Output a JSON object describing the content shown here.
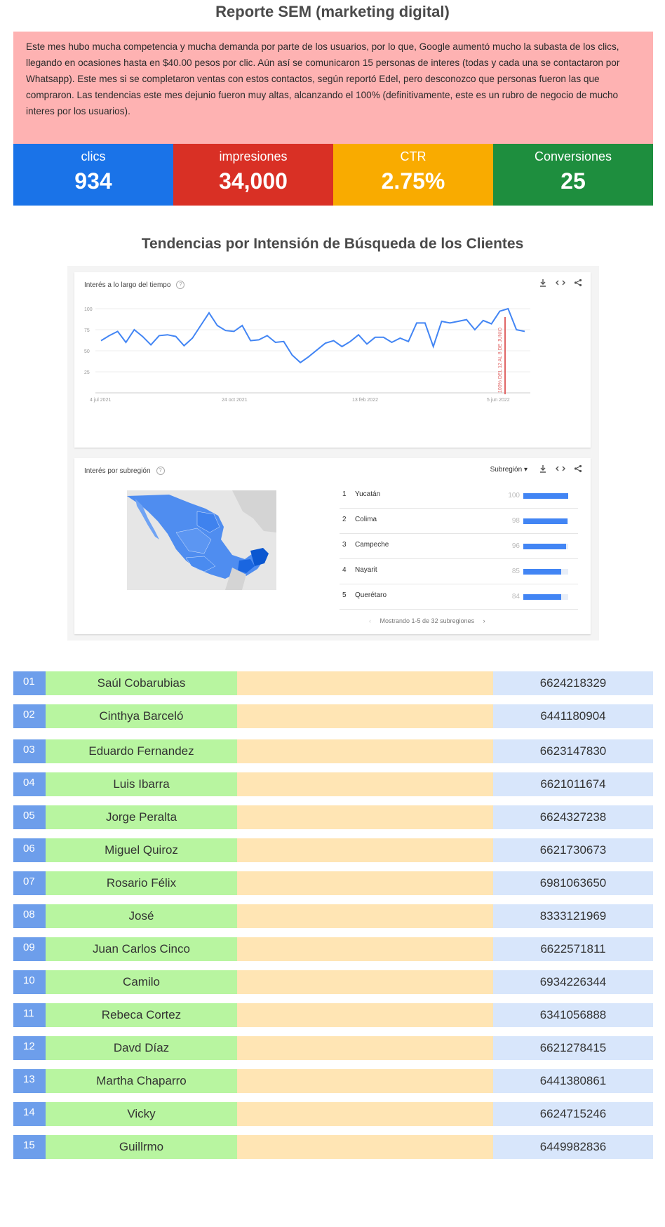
{
  "title": "Reporte SEM (marketing digital)",
  "summary": "Este mes hubo mucha competencia y mucha demanda por parte de los usuarios, por lo que, Google aumentó mucho la subasta de los clics, llegando en ocasiones hasta en $40.00 pesos por clic. Aún así se comunicaron 15 personas de interes (todas y cada una se contactaron por Whatsapp). Este mes si se completaron ventas con estos contactos, según reportó Edel, pero desconozco que personas fueron las que compraron. Las tendencias este mes dejunio fueron muy altas, alcanzando el 100% (definitivamente, este es un rubro de negocio de mucho interes por los usuarios).",
  "metrics": [
    {
      "label": "clics",
      "value": "934",
      "color": "#1a73e8"
    },
    {
      "label": "impresiones",
      "value": "34,000",
      "color": "#d93025"
    },
    {
      "label": "CTR",
      "value": "2.75%",
      "color": "#f9ab00"
    },
    {
      "label": "Conversiones",
      "value": "25",
      "color": "#1e8e3e"
    }
  ],
  "trends_title": "Tendencias por Intensión de Búsqueda de los Clientes",
  "interest_card": {
    "title": "Interés a lo largo del tiempo",
    "annotation": "100% DEL 12 AL 8 DE JUNIO"
  },
  "region_card": {
    "title": "Interés por subregión",
    "selector": "Subregión",
    "pager": "Mostrando 1-5 de 32 subregiones",
    "regions": [
      {
        "rank": "1",
        "name": "Yucatán",
        "value": 100
      },
      {
        "rank": "2",
        "name": "Colima",
        "value": 98
      },
      {
        "rank": "3",
        "name": "Campeche",
        "value": 96
      },
      {
        "rank": "4",
        "name": "Nayarit",
        "value": 85
      },
      {
        "rank": "5",
        "name": "Querétaro",
        "value": 84
      }
    ]
  },
  "chart_data": {
    "type": "line",
    "title": "Interés a lo largo del tiempo",
    "x_ticks": [
      "4 jul 2021",
      "24 oct 2021",
      "13 feb 2022",
      "5 jun 2022"
    ],
    "y_ticks": [
      25,
      50,
      75,
      100
    ],
    "ylim": [
      0,
      110
    ],
    "grid": true,
    "series": [
      {
        "color": "#4285f4",
        "values": [
          62,
          68,
          73,
          60,
          75,
          67,
          57,
          68,
          69,
          67,
          56,
          65,
          80,
          95,
          80,
          74,
          73,
          80,
          62,
          63,
          68,
          60,
          61,
          45,
          36,
          43,
          51,
          59,
          62,
          55,
          61,
          69,
          58,
          66,
          66,
          60,
          65,
          61,
          83,
          83,
          55,
          85,
          83,
          85,
          87,
          75,
          86,
          82,
          97,
          100,
          75,
          73
        ]
      }
    ]
  },
  "contacts": [
    {
      "num": "01",
      "name": "Saúl Cobarubias",
      "phone": "6624218329"
    },
    {
      "num": "02",
      "name": "Cinthya Barceló",
      "phone": "6441180904"
    },
    {
      "num": "03",
      "name": "Eduardo Fernandez",
      "phone": "6623147830"
    },
    {
      "num": "04",
      "name": "Luis Ibarra",
      "phone": "6621011674"
    },
    {
      "num": "05",
      "name": "Jorge Peralta",
      "phone": "6624327238"
    },
    {
      "num": "06",
      "name": "Miguel Quiroz",
      "phone": "6621730673"
    },
    {
      "num": "07",
      "name": "Rosario Félix",
      "phone": "6981063650"
    },
    {
      "num": "08",
      "name": "José",
      "phone": "8333121969"
    },
    {
      "num": "09",
      "name": "Juan Carlos Cinco",
      "phone": "6622571811"
    },
    {
      "num": "10",
      "name": "Camilo",
      "phone": "6934226344"
    },
    {
      "num": "11",
      "name": "Rebeca Cortez",
      "phone": "6341056888"
    },
    {
      "num": "12",
      "name": "Davd Díaz",
      "phone": "6621278415"
    },
    {
      "num": "13",
      "name": "Martha Chaparro",
      "phone": "6441380861"
    },
    {
      "num": "14",
      "name": "Vicky",
      "phone": "6624715246"
    },
    {
      "num": "15",
      "name": "Guillrmo",
      "phone": "6449982836"
    }
  ]
}
